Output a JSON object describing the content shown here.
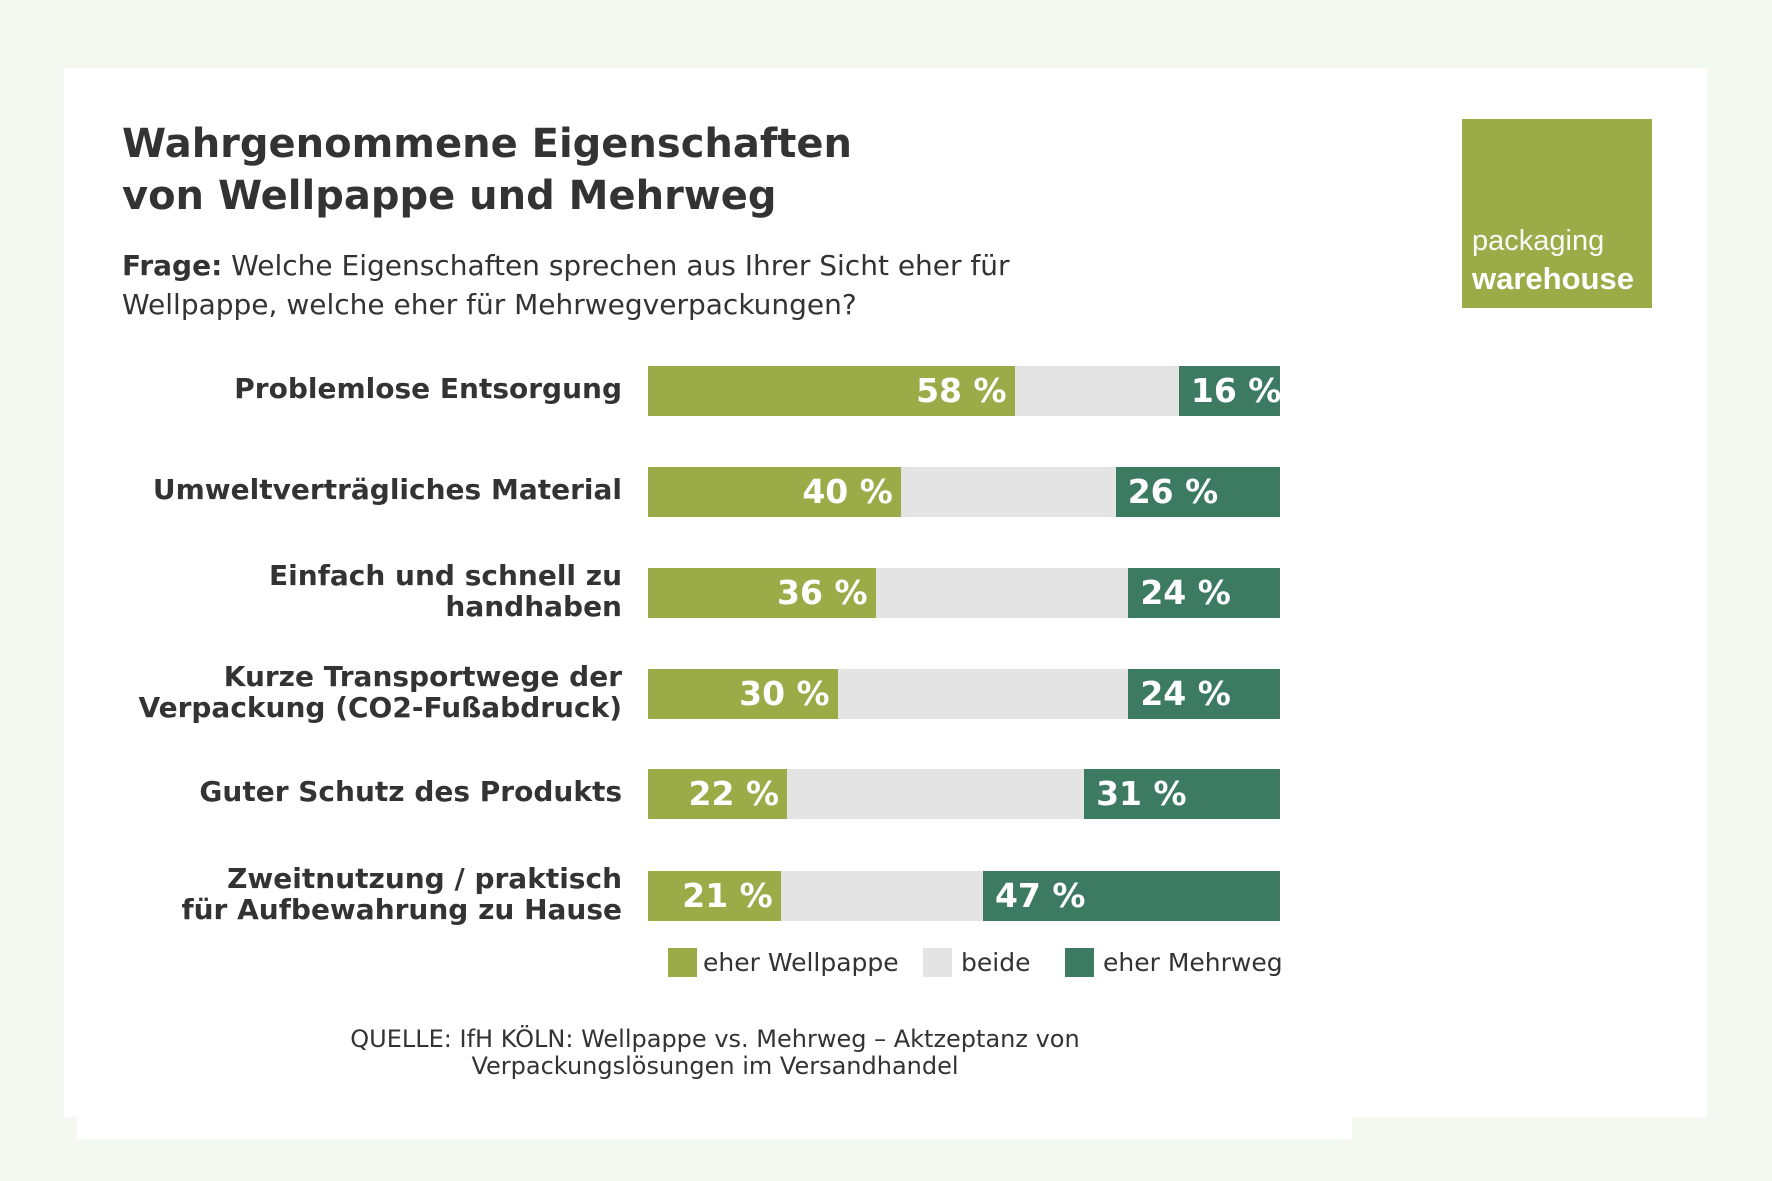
{
  "title_lines": [
    "Wahrgenommene Eigenschaften",
    "von Wellpappe und Mehrweg"
  ],
  "question": {
    "label": "Frage:",
    "text_line1": " Welche Eigenschaften sprechen aus Ihrer Sicht eher für",
    "text_line2": "Wellpappe, welche eher für Mehrwegverpackungen?"
  },
  "logo": {
    "line1": "packaging",
    "line2": "warehouse"
  },
  "legend": [
    "eher Wellpappe",
    "beide",
    "eher Mehrweg"
  ],
  "source": {
    "line1": "QUELLE: IfH KÖLN: Wellpappe vs. Mehrweg – Aktzeptanz von",
    "line2": "Verpackungslösungen im Versandhandel"
  },
  "colors": {
    "wellpappe": "#9aab48",
    "beide": "#e4e4e4",
    "mehrweg": "#3c7a62",
    "background": "#f3f8f0"
  },
  "chart_data": {
    "type": "bar",
    "orientation": "horizontal-stacked-100",
    "categories": [
      [
        "Problemlose Entsorgung"
      ],
      [
        "Umweltverträgliches Material"
      ],
      [
        "Einfach und schnell zu",
        "handhaben"
      ],
      [
        "Kurze Transportwege der",
        "Verpackung (CO2-Fußabdruck)"
      ],
      [
        "Guter Schutz des Produkts"
      ],
      [
        "Zweitnutzung / praktisch",
        "für Aufbewahrung zu Hause"
      ]
    ],
    "series": [
      {
        "name": "eher Wellpappe",
        "values": [
          58,
          40,
          36,
          30,
          22,
          21
        ],
        "labels": [
          "58 %",
          "40 %",
          "36 %",
          "30 %",
          "22 %",
          "21 %"
        ]
      },
      {
        "name": "beide",
        "values": [
          26,
          34,
          40,
          46,
          47,
          32
        ]
      },
      {
        "name": "eher Mehrweg",
        "values": [
          16,
          26,
          24,
          24,
          31,
          47
        ],
        "labels": [
          "16 %",
          "26 %",
          "24 %",
          "24 %",
          "31 %",
          "47 %"
        ]
      }
    ],
    "xlim": [
      0,
      100
    ],
    "unit": "%",
    "legend_position": "bottom"
  }
}
